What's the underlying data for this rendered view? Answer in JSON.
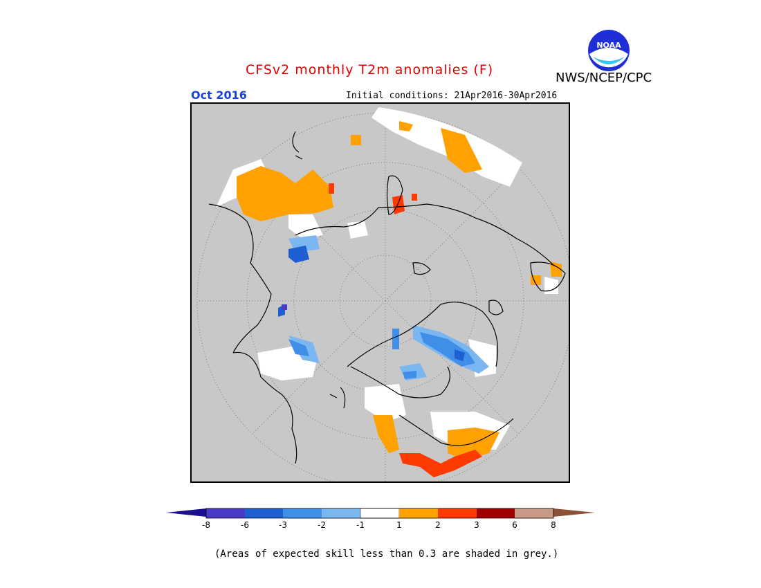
{
  "header": {
    "title": "CFSv2 monthly T2m anomalies (F)",
    "agency": "NWS/NCEP/CPC",
    "logo_text": "NOAA",
    "month": "Oct 2016",
    "initial_conditions": "Initial conditions: 21Apr2016-30Apr2016"
  },
  "colorbar": {
    "tick_labels": [
      "-8",
      "-6",
      "-3",
      "-2",
      "-1",
      "1",
      "2",
      "3",
      "6",
      "8"
    ],
    "colors": {
      "lt_-8": "#1a0f8f",
      "-8_-6": "#4a3ac8",
      "-6_-3": "#1e5fd4",
      "-3_-2": "#3f8ee8",
      "-2_-1": "#7ab6f0",
      "-1_1": "#ffffff",
      "1_2": "#ffa100",
      "2_3": "#ff3a00",
      "3_6": "#a00000",
      "6_8": "#c89a86",
      "gt_8": "#8a5038"
    }
  },
  "footnote": "(Areas of expected skill less than 0.3 are shaded in grey.)",
  "map": {
    "projection": "north polar stereographic",
    "no_skill_color": "#c8c8c8"
  }
}
